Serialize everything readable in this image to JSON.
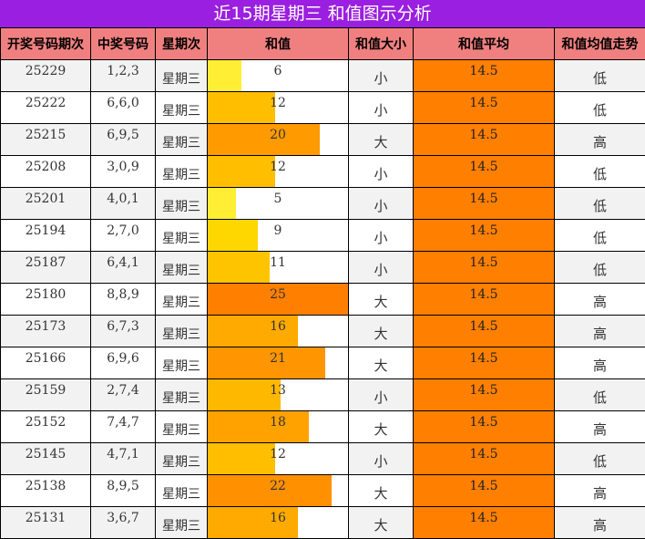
{
  "title": "近15期星期三 和值图示分析",
  "headers": [
    "开奖号码期次",
    "中奖号码",
    "星期次",
    "和值",
    "和值大小",
    "和值平均",
    "和值均值走势"
  ],
  "chart_data": {
    "type": "table",
    "sum_max": 25,
    "rows": [
      {
        "issue": "25229",
        "numbers": "1,2,3",
        "weekday": "星期三",
        "sum": 6,
        "size": "小",
        "avg": "14.5",
        "trend": "低",
        "bar_color": "#ffee33"
      },
      {
        "issue": "25222",
        "numbers": "6,6,0",
        "weekday": "星期三",
        "sum": 12,
        "size": "小",
        "avg": "14.5",
        "trend": "低",
        "bar_color": "#ffbf00"
      },
      {
        "issue": "25215",
        "numbers": "6,9,5",
        "weekday": "星期三",
        "sum": 20,
        "size": "大",
        "avg": "14.5",
        "trend": "高",
        "bar_color": "#ff9a00"
      },
      {
        "issue": "25208",
        "numbers": "3,0,9",
        "weekday": "星期三",
        "sum": 12,
        "size": "小",
        "avg": "14.5",
        "trend": "低",
        "bar_color": "#ffbf00"
      },
      {
        "issue": "25201",
        "numbers": "4,0,1",
        "weekday": "星期三",
        "sum": 5,
        "size": "小",
        "avg": "14.5",
        "trend": "低",
        "bar_color": "#ffee33"
      },
      {
        "issue": "25194",
        "numbers": "2,7,0",
        "weekday": "星期三",
        "sum": 9,
        "size": "小",
        "avg": "14.5",
        "trend": "低",
        "bar_color": "#ffd700"
      },
      {
        "issue": "25187",
        "numbers": "6,4,1",
        "weekday": "星期三",
        "sum": 11,
        "size": "小",
        "avg": "14.5",
        "trend": "低",
        "bar_color": "#ffc400"
      },
      {
        "issue": "25180",
        "numbers": "8,8,9",
        "weekday": "星期三",
        "sum": 25,
        "size": "大",
        "avg": "14.5",
        "trend": "高",
        "bar_color": "#ff7f00"
      },
      {
        "issue": "25173",
        "numbers": "6,7,3",
        "weekday": "星期三",
        "sum": 16,
        "size": "大",
        "avg": "14.5",
        "trend": "高",
        "bar_color": "#ffaa00"
      },
      {
        "issue": "25166",
        "numbers": "6,9,6",
        "weekday": "星期三",
        "sum": 21,
        "size": "大",
        "avg": "14.5",
        "trend": "高",
        "bar_color": "#ff9500"
      },
      {
        "issue": "25159",
        "numbers": "2,7,4",
        "weekday": "星期三",
        "sum": 13,
        "size": "小",
        "avg": "14.5",
        "trend": "低",
        "bar_color": "#ffb800"
      },
      {
        "issue": "25152",
        "numbers": "7,4,7",
        "weekday": "星期三",
        "sum": 18,
        "size": "大",
        "avg": "14.5",
        "trend": "高",
        "bar_color": "#ffa200"
      },
      {
        "issue": "25145",
        "numbers": "4,7,1",
        "weekday": "星期三",
        "sum": 12,
        "size": "小",
        "avg": "14.5",
        "trend": "低",
        "bar_color": "#ffbf00"
      },
      {
        "issue": "25138",
        "numbers": "8,9,5",
        "weekday": "星期三",
        "sum": 22,
        "size": "大",
        "avg": "14.5",
        "trend": "高",
        "bar_color": "#ff9000"
      },
      {
        "issue": "25131",
        "numbers": "3,6,7",
        "weekday": "星期三",
        "sum": 16,
        "size": "大",
        "avg": "14.5",
        "trend": "高",
        "bar_color": "#ffaa00"
      }
    ]
  }
}
